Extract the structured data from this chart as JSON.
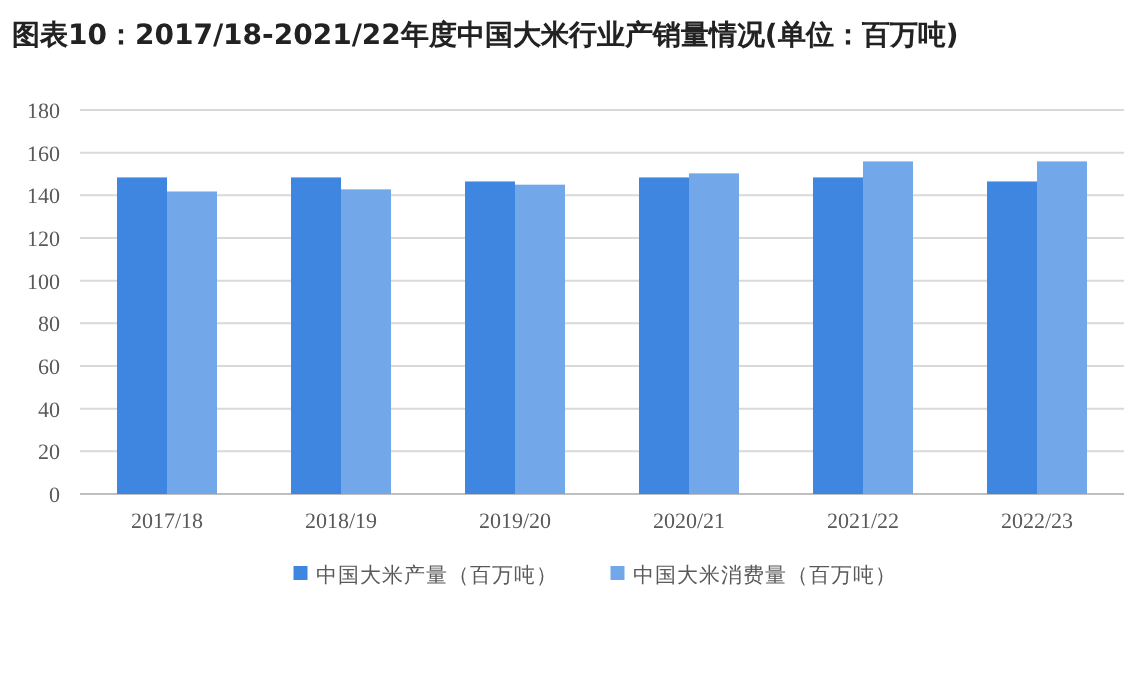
{
  "chart_data": {
    "type": "bar",
    "title": "图表10：2017/18-2021/22年度中国大米行业产销量情况(单位：百万吨)",
    "categories": [
      "2017/18",
      "2018/19",
      "2019/20",
      "2020/21",
      "2021/22",
      "2022/23"
    ],
    "series": [
      {
        "name": "中国大米产量（百万吨）",
        "color": "#3f86e0",
        "values": [
          148.4,
          148.4,
          146.5,
          148.4,
          148.4,
          146.5
        ]
      },
      {
        "name": "中国大米消费量（百万吨）",
        "color": "#72a7ea",
        "values": [
          141.8,
          142.8,
          145.0,
          150.3,
          155.9,
          155.9
        ]
      }
    ],
    "ylim": [
      0,
      180
    ],
    "yticks": [
      0,
      20,
      40,
      60,
      80,
      100,
      120,
      140,
      160,
      180
    ],
    "grid": "y",
    "legend": "bottom"
  }
}
